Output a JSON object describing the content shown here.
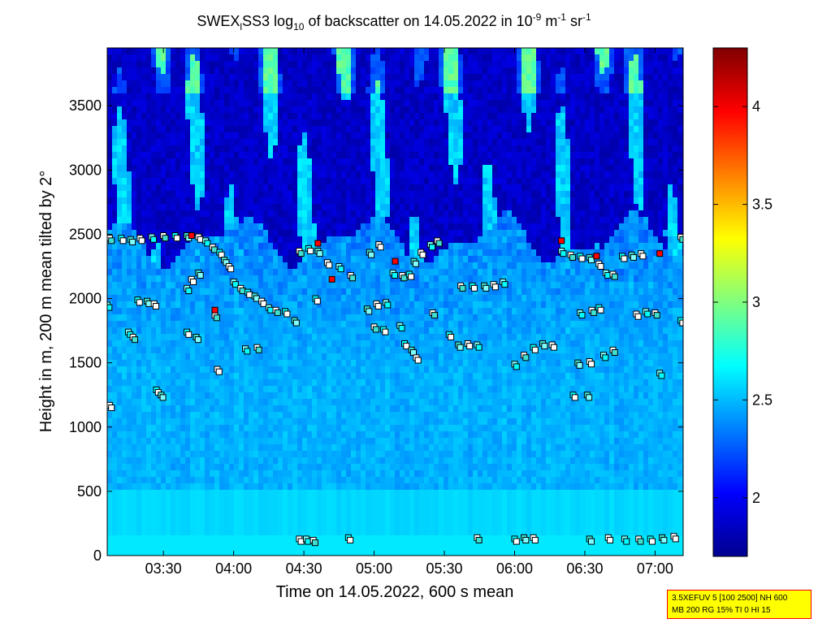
{
  "chart_data": {
    "type": "heatmap",
    "title_parts": {
      "prefix": "SWEX",
      "sub1": "l",
      "mid": "SS3 log",
      "sub2": "10",
      "text": " of backscatter on 14.05.2022 in 10",
      "sup1": "-9",
      "unit_m": " m",
      "sup2": "-1",
      "unit_sr": " sr",
      "sup3": "-1"
    },
    "xlabel": "Time on 14.05.2022, 600 s mean",
    "ylabel": "Height in m, 200 m mean tilted by 2°",
    "x_ticks": [
      "03:30",
      "04:00",
      "04:30",
      "05:00",
      "05:30",
      "06:00",
      "06:30",
      "07:00"
    ],
    "x_range_minutes": [
      186,
      432
    ],
    "x_tick_minutes": [
      210,
      240,
      270,
      300,
      330,
      360,
      390,
      420
    ],
    "y_ticks": [
      0,
      500,
      1000,
      1500,
      2000,
      2500,
      3000,
      3500
    ],
    "ylim": [
      0,
      3950
    ],
    "colorbar": {
      "ticks": [
        "2",
        "2.5",
        "3",
        "3.5",
        "4"
      ],
      "tick_values": [
        2,
        2.5,
        3,
        3.5,
        4
      ],
      "range": [
        1.7,
        4.3
      ],
      "colormap": "jet"
    },
    "field_description": {
      "below_500": 2.6,
      "500_to_2300": 2.45,
      "above_2500_mostly": 1.85
    },
    "cloud_base_points": [
      {
        "t": 187,
        "h": 2470
      },
      {
        "t": 192,
        "h": 2470
      },
      {
        "t": 196,
        "h": 2460
      },
      {
        "t": 200,
        "h": 2470
      },
      {
        "t": 205,
        "h": 2480
      },
      {
        "t": 210,
        "h": 2490
      },
      {
        "t": 215,
        "h": 2490
      },
      {
        "t": 220,
        "h": 2490
      },
      {
        "t": 225,
        "h": 2480
      },
      {
        "t": 228,
        "h": 2450
      },
      {
        "t": 231,
        "h": 2400
      },
      {
        "t": 234,
        "h": 2360
      },
      {
        "t": 236,
        "h": 2300
      },
      {
        "t": 238,
        "h": 2250
      },
      {
        "t": 240,
        "h": 2130
      },
      {
        "t": 243,
        "h": 2080
      },
      {
        "t": 246,
        "h": 2050
      },
      {
        "t": 249,
        "h": 2020
      },
      {
        "t": 252,
        "h": 1980
      },
      {
        "t": 255,
        "h": 1930
      },
      {
        "t": 258,
        "h": 1910
      },
      {
        "t": 262,
        "h": 1900
      },
      {
        "t": 225,
        "h": 2200
      },
      {
        "t": 222,
        "h": 2150
      },
      {
        "t": 220,
        "h": 2080
      },
      {
        "t": 232,
        "h": 1870
      },
      {
        "t": 220,
        "h": 1740
      },
      {
        "t": 224,
        "h": 1700
      },
      {
        "t": 233,
        "h": 1450
      },
      {
        "t": 245,
        "h": 1610
      },
      {
        "t": 250,
        "h": 1620
      },
      {
        "t": 199,
        "h": 1990
      },
      {
        "t": 203,
        "h": 1980
      },
      {
        "t": 206,
        "h": 1960
      },
      {
        "t": 195,
        "h": 1740
      },
      {
        "t": 197,
        "h": 1700
      },
      {
        "t": 207,
        "h": 1290
      },
      {
        "t": 209,
        "h": 1250
      },
      {
        "t": 187,
        "h": 1170
      },
      {
        "t": 186,
        "h": 1950
      },
      {
        "t": 268,
        "h": 2370
      },
      {
        "t": 272,
        "h": 2390
      },
      {
        "t": 276,
        "h": 2370
      },
      {
        "t": 280,
        "h": 2280
      },
      {
        "t": 285,
        "h": 2250
      },
      {
        "t": 290,
        "h": 2180
      },
      {
        "t": 275,
        "h": 2000
      },
      {
        "t": 266,
        "h": 1830
      },
      {
        "t": 268,
        "h": 130
      },
      {
        "t": 271,
        "h": 130
      },
      {
        "t": 274,
        "h": 120
      },
      {
        "t": 289,
        "h": 140
      },
      {
        "t": 297,
        "h": 1920
      },
      {
        "t": 301,
        "h": 1960
      },
      {
        "t": 305,
        "h": 1970
      },
      {
        "t": 300,
        "h": 1780
      },
      {
        "t": 304,
        "h": 1760
      },
      {
        "t": 298,
        "h": 2360
      },
      {
        "t": 302,
        "h": 2420
      },
      {
        "t": 308,
        "h": 2200
      },
      {
        "t": 312,
        "h": 2180
      },
      {
        "t": 315,
        "h": 2190
      },
      {
        "t": 317,
        "h": 2290
      },
      {
        "t": 320,
        "h": 2360
      },
      {
        "t": 324,
        "h": 2420
      },
      {
        "t": 327,
        "h": 2450
      },
      {
        "t": 313,
        "h": 1650
      },
      {
        "t": 316,
        "h": 1600
      },
      {
        "t": 318,
        "h": 1540
      },
      {
        "t": 311,
        "h": 1790
      },
      {
        "t": 325,
        "h": 1890
      },
      {
        "t": 332,
        "h": 1720
      },
      {
        "t": 336,
        "h": 1640
      },
      {
        "t": 340,
        "h": 1650
      },
      {
        "t": 344,
        "h": 1640
      },
      {
        "t": 337,
        "h": 2100
      },
      {
        "t": 342,
        "h": 2100
      },
      {
        "t": 347,
        "h": 2100
      },
      {
        "t": 351,
        "h": 2110
      },
      {
        "t": 355,
        "h": 2130
      },
      {
        "t": 344,
        "h": 140
      },
      {
        "t": 360,
        "h": 130
      },
      {
        "t": 364,
        "h": 140
      },
      {
        "t": 368,
        "h": 140
      },
      {
        "t": 360,
        "h": 1490
      },
      {
        "t": 364,
        "h": 1560
      },
      {
        "t": 368,
        "h": 1620
      },
      {
        "t": 372,
        "h": 1650
      },
      {
        "t": 376,
        "h": 1640
      },
      {
        "t": 380,
        "h": 2370
      },
      {
        "t": 384,
        "h": 2340
      },
      {
        "t": 388,
        "h": 2330
      },
      {
        "t": 392,
        "h": 2320
      },
      {
        "t": 396,
        "h": 2270
      },
      {
        "t": 399,
        "h": 2200
      },
      {
        "t": 402,
        "h": 2190
      },
      {
        "t": 406,
        "h": 2330
      },
      {
        "t": 410,
        "h": 2340
      },
      {
        "t": 414,
        "h": 2350
      },
      {
        "t": 388,
        "h": 1890
      },
      {
        "t": 393,
        "h": 1910
      },
      {
        "t": 396,
        "h": 1930
      },
      {
        "t": 387,
        "h": 1500
      },
      {
        "t": 392,
        "h": 1510
      },
      {
        "t": 398,
        "h": 1560
      },
      {
        "t": 402,
        "h": 1600
      },
      {
        "t": 385,
        "h": 1250
      },
      {
        "t": 391,
        "h": 1250
      },
      {
        "t": 412,
        "h": 1880
      },
      {
        "t": 416,
        "h": 1900
      },
      {
        "t": 420,
        "h": 1890
      },
      {
        "t": 431,
        "h": 1830
      },
      {
        "t": 392,
        "h": 130
      },
      {
        "t": 400,
        "h": 140
      },
      {
        "t": 407,
        "h": 130
      },
      {
        "t": 413,
        "h": 130
      },
      {
        "t": 418,
        "h": 130
      },
      {
        "t": 423,
        "h": 140
      },
      {
        "t": 428,
        "h": 150
      },
      {
        "t": 422,
        "h": 1420
      },
      {
        "t": 431,
        "h": 2480
      }
    ],
    "red_points": [
      {
        "t": 222,
        "h": 2490
      },
      {
        "t": 232,
        "h": 1910
      },
      {
        "t": 276,
        "h": 2430
      },
      {
        "t": 282,
        "h": 2150
      },
      {
        "t": 309,
        "h": 2290
      },
      {
        "t": 380,
        "h": 2450
      },
      {
        "t": 395,
        "h": 2330
      },
      {
        "t": 422,
        "h": 2350
      }
    ]
  },
  "info_box": {
    "line1": "3.5XEFUV 5 [100 2500] NH 600",
    "line2": "MB 200 RG 15% TI 0 HI 15"
  }
}
